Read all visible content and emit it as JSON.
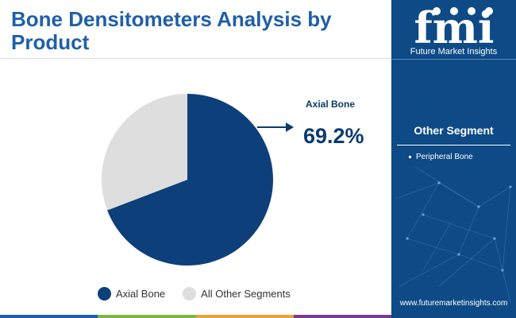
{
  "title": "Bone Densitometers Analysis by Product",
  "sidebar": {
    "logo_mark": "fmi",
    "brand_name": "Future Market Insights",
    "segment_title": "Other Segment",
    "segment_items": [
      "Peripheral Bone"
    ],
    "website": "www.futuremarketinsights.com",
    "background_color": "#0d4a86"
  },
  "callout": {
    "label": "Axial Bone",
    "value": "69.2%"
  },
  "chart_data": {
    "type": "pie",
    "categories": [
      "Axial Bone",
      "All Other Segments"
    ],
    "values": [
      69.2,
      30.8
    ],
    "colors": [
      "#0d3f7a",
      "#dedede"
    ],
    "start_angle_deg": 0,
    "direction": "clockwise",
    "legend": "bottom",
    "title": "Bone Densitometers Analysis by Product"
  },
  "bottom_bar_colors": [
    "#1f5fa8",
    "#7ab648",
    "#e8a33d",
    "#7a3b8f"
  ]
}
